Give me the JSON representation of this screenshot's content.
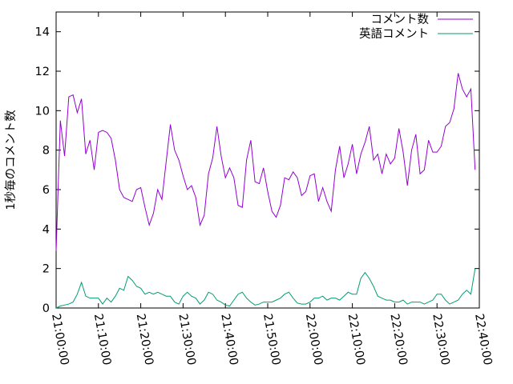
{
  "chart_data": {
    "type": "line",
    "title": "",
    "xlabel": "",
    "ylabel": "1秒毎のコメント数",
    "xlim": [
      "21:00:00",
      "22:40:00"
    ],
    "ylim": [
      0,
      15
    ],
    "yticks": [
      0,
      2,
      4,
      6,
      8,
      10,
      12,
      14
    ],
    "xticks": [
      "21:00:00",
      "21:10:00",
      "21:20:00",
      "21:30:00",
      "21:40:00",
      "21:50:00",
      "22:00:00",
      "22:10:00",
      "22:20:00",
      "22:30:00",
      "22:40:00"
    ],
    "grid": false,
    "legend_position": "top-right",
    "x_step_seconds": 60,
    "series": [
      {
        "name": "コメント数",
        "color": "#9400d3",
        "values": [
          2.9,
          9.5,
          7.7,
          10.7,
          10.8,
          9.9,
          10.6,
          7.8,
          8.5,
          7.0,
          8.9,
          9.0,
          8.9,
          8.6,
          7.5,
          6.0,
          5.6,
          5.5,
          5.4,
          6.0,
          6.1,
          5.1,
          4.2,
          4.8,
          6.0,
          5.5,
          7.4,
          9.3,
          8.0,
          7.5,
          6.7,
          6.0,
          6.2,
          5.6,
          4.2,
          4.7,
          6.8,
          7.6,
          9.2,
          7.7,
          6.6,
          7.1,
          6.6,
          5.2,
          5.1,
          7.5,
          8.5,
          6.4,
          6.3,
          7.1,
          5.9,
          4.9,
          4.6,
          5.2,
          6.6,
          6.5,
          6.9,
          6.6,
          5.7,
          5.9,
          6.7,
          6.8,
          5.4,
          6.1,
          5.4,
          4.9,
          7.0,
          8.2,
          6.6,
          7.3,
          8.3,
          6.8,
          7.8,
          8.4,
          9.2,
          7.5,
          7.8,
          6.8,
          7.8,
          7.3,
          7.6,
          9.1,
          7.9,
          6.2,
          8.0,
          8.8,
          6.8,
          7.0,
          8.5,
          7.9,
          7.9,
          8.2,
          9.2,
          9.4,
          10.1,
          11.9,
          11.1,
          10.7,
          11.1,
          7.0
        ]
      },
      {
        "name": "英語コメント",
        "color": "#009e73",
        "values": [
          0.0,
          0.1,
          0.15,
          0.2,
          0.3,
          0.7,
          1.3,
          0.6,
          0.5,
          0.5,
          0.5,
          0.2,
          0.5,
          0.3,
          0.6,
          1.0,
          0.9,
          1.6,
          1.4,
          1.1,
          1.0,
          0.7,
          0.8,
          0.7,
          0.8,
          0.7,
          0.6,
          0.6,
          0.3,
          0.2,
          0.6,
          0.8,
          0.6,
          0.5,
          0.2,
          0.4,
          0.8,
          0.7,
          0.4,
          0.3,
          0.15,
          0.1,
          0.4,
          0.7,
          0.8,
          0.5,
          0.3,
          0.15,
          0.2,
          0.3,
          0.3,
          0.3,
          0.4,
          0.5,
          0.7,
          0.8,
          0.5,
          0.25,
          0.2,
          0.2,
          0.3,
          0.5,
          0.5,
          0.6,
          0.4,
          0.5,
          0.5,
          0.4,
          0.6,
          0.8,
          0.7,
          0.7,
          1.5,
          1.8,
          1.5,
          1.1,
          0.6,
          0.5,
          0.4,
          0.4,
          0.3,
          0.3,
          0.4,
          0.2,
          0.3,
          0.3,
          0.3,
          0.2,
          0.3,
          0.4,
          0.7,
          0.7,
          0.4,
          0.2,
          0.3,
          0.4,
          0.7,
          0.9,
          0.7,
          2.0
        ]
      }
    ]
  }
}
